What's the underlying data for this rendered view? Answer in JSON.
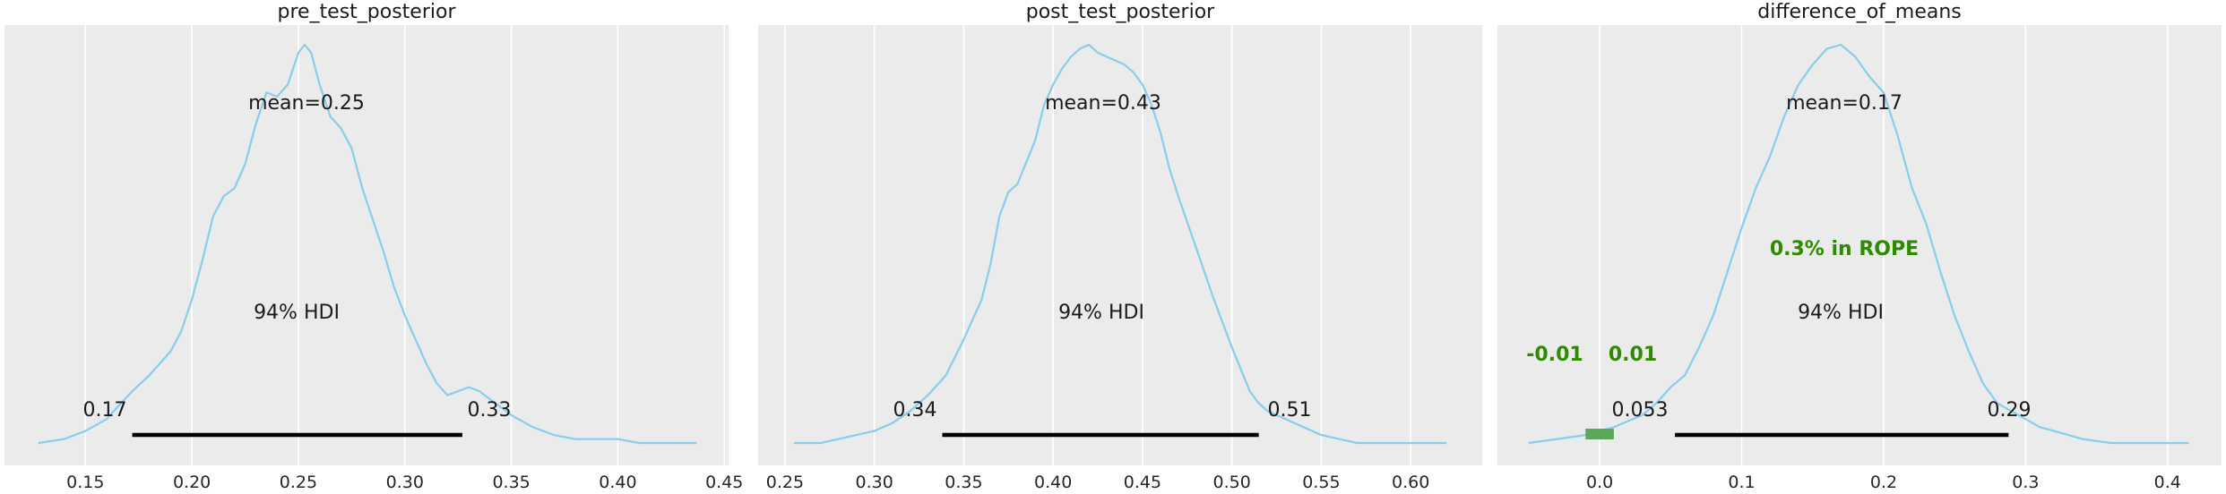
{
  "chart_data": [
    {
      "type": "area",
      "title": "pre_test_posterior",
      "xlim": [
        0.112,
        0.452
      ],
      "xticks": [
        0.15,
        0.2,
        0.25,
        0.3,
        0.35,
        0.4,
        0.45
      ],
      "xtick_labels": [
        "0.15",
        "0.20",
        "0.25",
        "0.30",
        "0.35",
        "0.40",
        "0.45"
      ],
      "grid": true,
      "density_x": [
        0.128,
        0.14,
        0.15,
        0.16,
        0.165,
        0.172,
        0.18,
        0.19,
        0.195,
        0.2,
        0.205,
        0.21,
        0.215,
        0.22,
        0.225,
        0.23,
        0.235,
        0.24,
        0.245,
        0.25,
        0.253,
        0.256,
        0.26,
        0.265,
        0.27,
        0.275,
        0.28,
        0.285,
        0.29,
        0.295,
        0.3,
        0.305,
        0.31,
        0.315,
        0.32,
        0.325,
        0.33,
        0.335,
        0.34,
        0.345,
        0.35,
        0.36,
        0.37,
        0.38,
        0.39,
        0.4,
        0.41,
        0.42,
        0.437
      ],
      "density_y": [
        0.0,
        0.01,
        0.03,
        0.06,
        0.09,
        0.13,
        0.17,
        0.23,
        0.28,
        0.36,
        0.46,
        0.57,
        0.62,
        0.64,
        0.7,
        0.8,
        0.88,
        0.87,
        0.9,
        0.98,
        1.0,
        0.98,
        0.9,
        0.82,
        0.79,
        0.74,
        0.64,
        0.56,
        0.48,
        0.39,
        0.32,
        0.26,
        0.2,
        0.15,
        0.12,
        0.13,
        0.14,
        0.13,
        0.11,
        0.09,
        0.07,
        0.04,
        0.02,
        0.01,
        0.01,
        0.01,
        0.0,
        0.0,
        0.0
      ],
      "mean_label": "mean=0.25",
      "hdi": [
        0.172,
        0.327
      ],
      "hdi_label": "94% HDI",
      "hdi_low_label": "0.17",
      "hdi_high_label": "0.33"
    },
    {
      "type": "area",
      "title": "post_test_posterior",
      "xlim": [
        0.235,
        0.64
      ],
      "xticks": [
        0.25,
        0.3,
        0.35,
        0.4,
        0.45,
        0.5,
        0.55,
        0.6
      ],
      "xtick_labels": [
        "0.25",
        "0.30",
        "0.35",
        "0.40",
        "0.45",
        "0.50",
        "0.55",
        "0.60"
      ],
      "grid": true,
      "density_x": [
        0.255,
        0.27,
        0.29,
        0.3,
        0.31,
        0.32,
        0.33,
        0.34,
        0.35,
        0.36,
        0.365,
        0.37,
        0.375,
        0.38,
        0.39,
        0.395,
        0.4,
        0.405,
        0.41,
        0.415,
        0.42,
        0.425,
        0.43,
        0.435,
        0.44,
        0.445,
        0.45,
        0.455,
        0.46,
        0.465,
        0.47,
        0.48,
        0.49,
        0.5,
        0.51,
        0.515,
        0.52,
        0.53,
        0.54,
        0.55,
        0.56,
        0.57,
        0.58,
        0.59,
        0.6,
        0.62
      ],
      "density_y": [
        0.0,
        0.0,
        0.02,
        0.03,
        0.05,
        0.08,
        0.12,
        0.17,
        0.26,
        0.36,
        0.45,
        0.57,
        0.63,
        0.65,
        0.76,
        0.85,
        0.9,
        0.94,
        0.97,
        0.99,
        1.0,
        0.98,
        0.97,
        0.96,
        0.95,
        0.93,
        0.9,
        0.85,
        0.78,
        0.69,
        0.62,
        0.49,
        0.36,
        0.24,
        0.13,
        0.1,
        0.08,
        0.06,
        0.04,
        0.02,
        0.01,
        0.0,
        0.0,
        0.0,
        0.0,
        0.0
      ],
      "mean_label": "mean=0.43",
      "hdi": [
        0.338,
        0.515
      ],
      "hdi_label": "94% HDI",
      "hdi_low_label": "0.34",
      "hdi_high_label": "0.51"
    },
    {
      "type": "area",
      "title": "difference_of_means",
      "xlim": [
        -0.072,
        0.438
      ],
      "xticks": [
        0.0,
        0.1,
        0.2,
        0.3,
        0.4
      ],
      "xtick_labels": [
        "0.0",
        "0.1",
        "0.2",
        "0.3",
        "0.4"
      ],
      "grid": true,
      "density_x": [
        -0.05,
        -0.03,
        -0.01,
        0.0,
        0.01,
        0.03,
        0.04,
        0.05,
        0.06,
        0.07,
        0.08,
        0.09,
        0.1,
        0.11,
        0.12,
        0.13,
        0.14,
        0.15,
        0.16,
        0.17,
        0.18,
        0.19,
        0.2,
        0.21,
        0.22,
        0.23,
        0.24,
        0.25,
        0.26,
        0.27,
        0.28,
        0.29,
        0.3,
        0.31,
        0.32,
        0.33,
        0.34,
        0.36,
        0.38,
        0.4,
        0.415
      ],
      "density_y": [
        0.0,
        0.01,
        0.02,
        0.03,
        0.04,
        0.07,
        0.1,
        0.14,
        0.17,
        0.24,
        0.32,
        0.43,
        0.54,
        0.64,
        0.72,
        0.82,
        0.9,
        0.95,
        0.99,
        1.0,
        0.97,
        0.92,
        0.88,
        0.77,
        0.64,
        0.55,
        0.43,
        0.32,
        0.23,
        0.15,
        0.1,
        0.08,
        0.06,
        0.04,
        0.03,
        0.02,
        0.01,
        0.0,
        0.0,
        0.0,
        0.0
      ],
      "mean_label": "mean=0.17",
      "hdi": [
        0.053,
        0.288
      ],
      "hdi_label": "94% HDI",
      "hdi_low_label": "0.053",
      "hdi_high_label": "0.29",
      "rope": [
        -0.01,
        0.01
      ],
      "rope_label": "0.3% in ROPE",
      "rope_low_label": "-0.01",
      "rope_high_label": "0.01"
    }
  ],
  "colors": {
    "figure_bg": "#ffffff",
    "axes_bg": "#ebebeb",
    "grid": "#ffffff",
    "density": "#87ceeb",
    "hdi_bar": "#000000",
    "rope_fill": "#5ba85b",
    "rope_text": "#2e8b00",
    "text": "#1a1a1a"
  }
}
